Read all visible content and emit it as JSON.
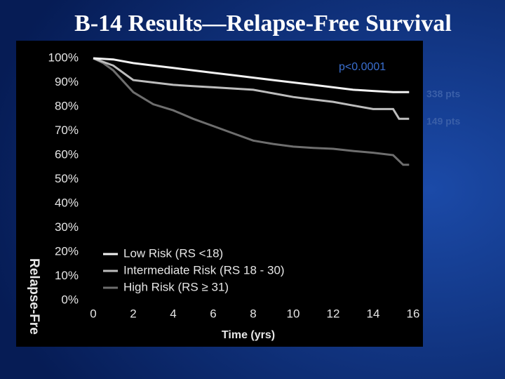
{
  "chart_data": {
    "type": "line",
    "title": "B-14 Results—Relapse-Free Survival",
    "x_label": "Time (yrs)",
    "y_label": "Relapse-Fre",
    "annotations": [
      "p<0.0001",
      "338 pts",
      "149 pts"
    ],
    "xlim": [
      0,
      16
    ],
    "xticks": [
      0,
      2,
      4,
      6,
      8,
      10,
      12,
      14,
      16
    ],
    "ylim": [
      0,
      100
    ],
    "yticks": [
      {
        "value": 0,
        "label": "0%"
      },
      {
        "value": 10,
        "label": "10%"
      },
      {
        "value": 20,
        "label": "20%"
      },
      {
        "value": 30,
        "label": "30%"
      },
      {
        "value": 40,
        "label": "40%"
      },
      {
        "value": 50,
        "label": "50%"
      },
      {
        "value": 60,
        "label": "60%"
      },
      {
        "value": 70,
        "label": "70%"
      },
      {
        "value": 80,
        "label": "80%"
      },
      {
        "value": 90,
        "label": "90%"
      },
      {
        "value": 100,
        "label": "100%"
      }
    ],
    "series": [
      {
        "name": "Low Risk (RS <18)",
        "color": "#f2f2f2",
        "x": [
          0,
          1,
          2,
          3,
          4,
          5,
          6,
          7,
          8,
          9,
          10,
          11,
          12,
          13,
          14,
          15,
          15.8
        ],
        "values": [
          100,
          99.5,
          98,
          97,
          96,
          95,
          94,
          93,
          92,
          91,
          90,
          89,
          88,
          87,
          86.5,
          86,
          86
        ]
      },
      {
        "name": "Intermediate Risk (RS 18 - 30)",
        "color": "#bdbdbd",
        "x": [
          0,
          1,
          2,
          3,
          4,
          5,
          6,
          7,
          8,
          9,
          10,
          11,
          12,
          13,
          14,
          15,
          15.3,
          15.8
        ],
        "values": [
          100,
          97,
          91,
          90,
          89,
          88.5,
          88,
          87.5,
          87,
          85.5,
          84,
          83,
          82,
          80.5,
          79,
          79,
          75,
          75
        ]
      },
      {
        "name": "High Risk (RS ≥ 31)",
        "color": "#6e6e6e",
        "x": [
          0,
          0.5,
          1,
          2,
          3,
          4,
          5,
          6,
          7,
          8,
          9,
          10,
          11,
          12,
          13,
          14,
          15,
          15.5,
          15.8
        ],
        "values": [
          100,
          98,
          95,
          86,
          81,
          78.5,
          75,
          72,
          69,
          66,
          64.6,
          63.5,
          63,
          62.6,
          61.7,
          61,
          60,
          56,
          56
        ]
      }
    ],
    "legend": "lower left"
  }
}
